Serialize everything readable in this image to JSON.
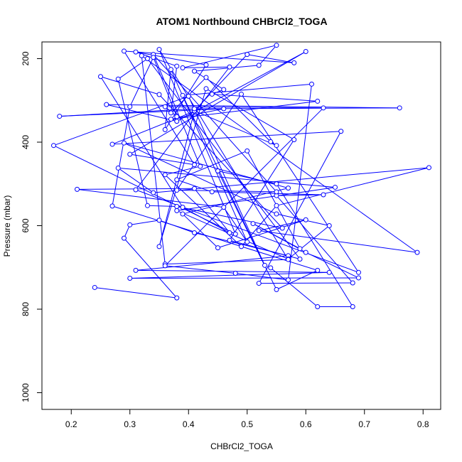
{
  "chart_data": {
    "type": "line",
    "title": "ATOM1 Northbound CHBrCl2_TOGA",
    "xlabel": "CHBrCl2_TOGA",
    "ylabel": "Pressure (mbar)",
    "xlim": [
      0.15,
      0.83
    ],
    "ylim": [
      1040,
      160
    ],
    "y_reversed": true,
    "xticks": [
      0.2,
      0.3,
      0.4,
      0.5,
      0.6,
      0.7,
      0.8
    ],
    "xtick_labels": [
      "0.2",
      "0.3",
      "0.4",
      "0.5",
      "0.6",
      "0.7",
      "0.8"
    ],
    "yticks": [
      200,
      400,
      600,
      800,
      1000
    ],
    "ytick_labels": [
      "200",
      "400",
      "600",
      "800",
      "1000"
    ],
    "grid": false,
    "legend": "none",
    "series_color": "#0000ff",
    "marker": "open-circle",
    "series": [
      {
        "points": [
          [
            0.24,
            748
          ],
          [
            0.38,
            773
          ],
          [
            0.29,
            630
          ],
          [
            0.3,
            598
          ],
          [
            0.35,
            587
          ],
          [
            0.41,
            617
          ],
          [
            0.57,
            672
          ],
          [
            0.31,
            707
          ],
          [
            0.64,
            712
          ],
          [
            0.3,
            726
          ],
          [
            0.69,
            725
          ],
          [
            0.6,
            664
          ],
          [
            0.51,
            595
          ],
          [
            0.59,
            655
          ],
          [
            0.5,
            421
          ],
          [
            0.38,
            490
          ],
          [
            0.44,
            519
          ],
          [
            0.63,
            526
          ],
          [
            0.55,
            528
          ],
          [
            0.68,
            737
          ],
          [
            0.52,
            738
          ],
          [
            0.66,
            374
          ],
          [
            0.27,
            405
          ],
          [
            0.41,
            326
          ],
          [
            0.35,
            650
          ],
          [
            0.43,
            272
          ],
          [
            0.58,
            394
          ],
          [
            0.47,
            635
          ],
          [
            0.59,
            680
          ],
          [
            0.33,
            200
          ],
          [
            0.28,
            249
          ],
          [
            0.33,
            552
          ],
          [
            0.38,
            554
          ],
          [
            0.56,
            606
          ],
          [
            0.35,
            286
          ],
          [
            0.25,
            243
          ],
          [
            0.39,
            556
          ],
          [
            0.47,
            617
          ],
          [
            0.41,
            511
          ],
          [
            0.21,
            513
          ],
          [
            0.46,
            556
          ],
          [
            0.5,
            639
          ],
          [
            0.37,
            226
          ],
          [
            0.36,
            370
          ],
          [
            0.43,
            215
          ],
          [
            0.31,
            184
          ],
          [
            0.38,
            218
          ],
          [
            0.37,
            330
          ],
          [
            0.43,
            245
          ],
          [
            0.54,
            399
          ],
          [
            0.55,
            408
          ],
          [
            0.41,
            325
          ],
          [
            0.5,
            190
          ],
          [
            0.58,
            210
          ],
          [
            0.29,
            182
          ],
          [
            0.41,
            454
          ],
          [
            0.3,
            429
          ],
          [
            0.6,
            183
          ],
          [
            0.38,
            350
          ],
          [
            0.26,
            310
          ],
          [
            0.76,
            318
          ],
          [
            0.41,
            320
          ],
          [
            0.18,
            338
          ],
          [
            0.46,
            320
          ],
          [
            0.37,
            345
          ],
          [
            0.62,
            302
          ],
          [
            0.44,
            285
          ],
          [
            0.46,
            274
          ],
          [
            0.41,
            230
          ],
          [
            0.52,
            216
          ],
          [
            0.55,
            168
          ],
          [
            0.39,
            222
          ],
          [
            0.47,
            220
          ],
          [
            0.31,
            514
          ],
          [
            0.69,
            712
          ],
          [
            0.49,
            285
          ],
          [
            0.38,
            515
          ],
          [
            0.55,
            519
          ],
          [
            0.34,
            190
          ],
          [
            0.42,
            458
          ],
          [
            0.36,
            478
          ],
          [
            0.49,
            650
          ],
          [
            0.55,
            552
          ],
          [
            0.81,
            461
          ],
          [
            0.34,
            521
          ],
          [
            0.28,
            462
          ],
          [
            0.65,
            508
          ],
          [
            0.38,
            564
          ],
          [
            0.57,
            680
          ],
          [
            0.64,
            600
          ],
          [
            0.55,
            572
          ],
          [
            0.29,
            402
          ],
          [
            0.57,
            510
          ],
          [
            0.39,
            572
          ],
          [
            0.45,
            653
          ],
          [
            0.6,
            586
          ],
          [
            0.52,
            612
          ],
          [
            0.79,
            664
          ],
          [
            0.32,
            193
          ],
          [
            0.36,
            692
          ],
          [
            0.57,
            681
          ],
          [
            0.35,
            178
          ],
          [
            0.48,
            620
          ],
          [
            0.17,
            408
          ],
          [
            0.4,
            290
          ],
          [
            0.53,
            695
          ],
          [
            0.39,
            288
          ],
          [
            0.61,
            261
          ],
          [
            0.57,
            730
          ],
          [
            0.48,
            714
          ],
          [
            0.36,
            696
          ],
          [
            0.63,
            318
          ],
          [
            0.36,
            315
          ],
          [
            0.38,
            339
          ],
          [
            0.34,
            197
          ],
          [
            0.3,
            315
          ],
          [
            0.27,
            553
          ],
          [
            0.62,
            707
          ],
          [
            0.55,
            753
          ],
          [
            0.45,
            469
          ],
          [
            0.55,
            500
          ],
          [
            0.68,
            794
          ],
          [
            0.62,
            794
          ],
          [
            0.54,
            701
          ]
        ]
      }
    ]
  }
}
